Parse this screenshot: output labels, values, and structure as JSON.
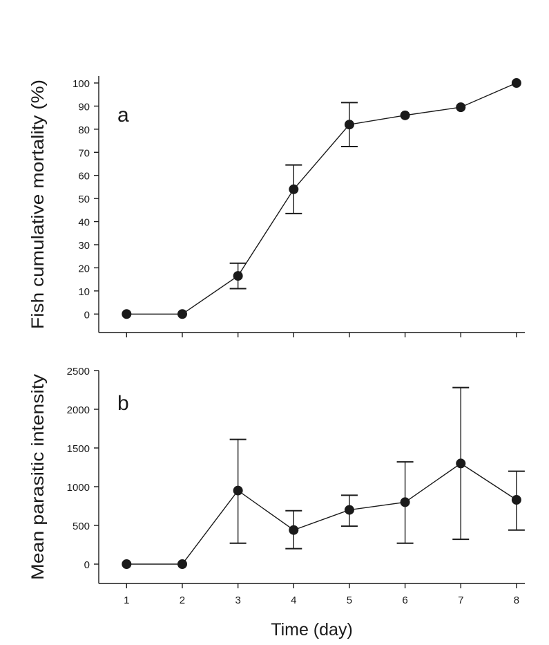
{
  "chart_data": [
    {
      "type": "line",
      "panel_label": "a",
      "title": "",
      "xlabel": "",
      "ylabel": "Fish cumulative mortality (%)",
      "x": [
        1,
        2,
        3,
        4,
        5,
        6,
        7,
        8
      ],
      "values": [
        0,
        0,
        16.5,
        54,
        82,
        86,
        89.5,
        100
      ],
      "error_low": [
        null,
        null,
        11,
        43.5,
        72.5,
        null,
        null,
        null
      ],
      "error_high": [
        null,
        null,
        22,
        64.5,
        91.5,
        null,
        null,
        null
      ],
      "xlim": [
        0.5,
        8.15
      ],
      "ylim": [
        -8,
        103
      ],
      "yticks": [
        0,
        10,
        20,
        30,
        40,
        50,
        60,
        70,
        80,
        90,
        100
      ],
      "xticks": [
        1,
        2,
        3,
        4,
        5,
        6,
        7,
        8
      ],
      "show_x_tick_labels": false,
      "grid": false,
      "legend": "none"
    },
    {
      "type": "line",
      "panel_label": "b",
      "title": "",
      "xlabel": "Time (day)",
      "ylabel": "Mean parasitic intensity",
      "x": [
        1,
        2,
        3,
        4,
        5,
        6,
        7,
        8
      ],
      "values": [
        0,
        0,
        950,
        440,
        700,
        800,
        1300,
        830
      ],
      "error_low": [
        null,
        null,
        270,
        200,
        490,
        270,
        320,
        440
      ],
      "error_high": [
        null,
        null,
        1610,
        690,
        890,
        1320,
        2280,
        1200
      ],
      "xlim": [
        0.5,
        8.15
      ],
      "ylim": [
        -250,
        2500
      ],
      "yticks": [
        0,
        500,
        1000,
        1500,
        2000,
        2500
      ],
      "xticks": [
        1,
        2,
        3,
        4,
        5,
        6,
        7,
        8
      ],
      "show_x_tick_labels": true,
      "grid": false,
      "legend": "none"
    }
  ]
}
